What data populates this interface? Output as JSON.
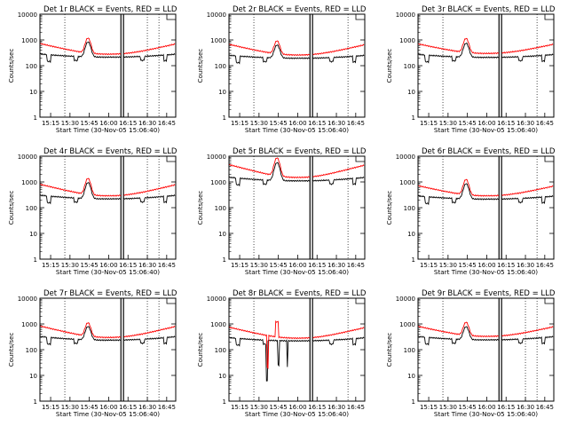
{
  "chart_data": {
    "type": "line",
    "ylabel": "Counts/sec",
    "xlabel": "Start Time (30-Nov-05 15:06:40)",
    "x_tick_labels": [
      "15:15",
      "15:30",
      "15:45",
      "16:00",
      "16:15",
      "16:30",
      "16:45"
    ],
    "y_tick_labels": [
      "1",
      "10",
      "100",
      "1000",
      "10000"
    ],
    "yscale": "log",
    "ylim": [
      1,
      10000
    ],
    "xlim_minutes_of_day": [
      906.7,
      1012
    ],
    "series_colors": {
      "events": "#000000",
      "lld": "#ff0000"
    },
    "panels": [
      {
        "title": "Det 1r BLACK = Events, RED = LLD",
        "spike": 1,
        "lld_base": 280,
        "evt_base": 215,
        "lld_edge": 700,
        "evt_edge": 280,
        "bump": 3.8,
        "vlines": [
          926,
          990,
          999
        ]
      },
      {
        "title": "Det 2r BLACK = Events, RED = LLD",
        "spike": 1,
        "lld_base": 260,
        "evt_base": 195,
        "lld_edge": 650,
        "evt_edge": 250,
        "bump": 3.2,
        "vlines": [
          926,
          999
        ]
      },
      {
        "title": "Det 3r BLACK = Events, RED = LLD",
        "spike": 1,
        "lld_base": 300,
        "evt_base": 210,
        "lld_edge": 680,
        "evt_edge": 270,
        "bump": 3.5,
        "vlines": [
          926,
          999
        ]
      },
      {
        "title": "Det 4r BLACK = Events, RED = LLD",
        "spike": 1,
        "lld_base": 290,
        "evt_base": 220,
        "lld_edge": 780,
        "evt_edge": 300,
        "bump": 4.2,
        "vlines": [
          926,
          990,
          999
        ]
      },
      {
        "title": "Det 5r BLACK = Events, RED = LLD",
        "spike": 1,
        "lld_base": 1500,
        "evt_base": 1100,
        "lld_edge": 4500,
        "evt_edge": 1500,
        "bump": 5.0,
        "vlines": [
          926,
          999
        ]
      },
      {
        "title": "Det 6r BLACK = Events, RED = LLD",
        "spike": 1,
        "lld_base": 290,
        "evt_base": 215,
        "lld_edge": 690,
        "evt_edge": 280,
        "bump": 3.9,
        "vlines": [
          926,
          999
        ]
      },
      {
        "title": "Det 7r BLACK = Events, RED = LLD",
        "spike": 1,
        "lld_base": 300,
        "evt_base": 235,
        "lld_edge": 800,
        "evt_edge": 320,
        "bump": 3.3,
        "vlines": [
          926,
          990,
          999
        ]
      },
      {
        "title": "Det 8r BLACK = Events, RED = LLD",
        "spike": 8,
        "lld_base": 280,
        "evt_base": 220,
        "lld_edge": 720,
        "evt_edge": 290,
        "bump": 1.0,
        "vlines": [
          926,
          999
        ]
      },
      {
        "title": "Det 9r BLACK = Events, RED = LLD",
        "spike": 1,
        "lld_base": 330,
        "evt_base": 240,
        "lld_edge": 780,
        "evt_edge": 320,
        "bump": 3.2,
        "vlines": [
          926,
          990,
          999
        ]
      }
    ]
  }
}
